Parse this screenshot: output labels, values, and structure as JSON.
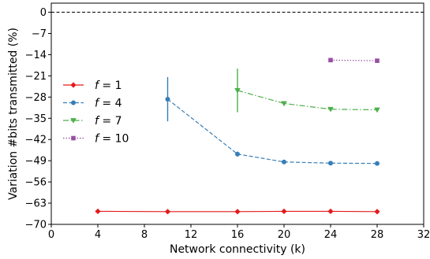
{
  "chart_data": {
    "type": "line",
    "title": "",
    "xlabel": "Network connectivity (k)",
    "ylabel": "Variation #bits transmitted (%)",
    "xlim": [
      0,
      32
    ],
    "ylim": [
      -70,
      3
    ],
    "xticks": [
      0,
      4,
      8,
      12,
      16,
      20,
      24,
      28,
      32
    ],
    "yticks": [
      0,
      -7,
      -14,
      -21,
      -28,
      -35,
      -42,
      -49,
      -56,
      -63,
      -70
    ],
    "grid": false,
    "legend_position": "center-left",
    "reference_line": {
      "y": 0,
      "style": "dashed",
      "color": "#000000"
    },
    "series": [
      {
        "name_symbol": "f",
        "name_value": "1",
        "color": "#e41a1c",
        "marker": "diamond",
        "linestyle": "solid",
        "x": [
          4,
          10,
          16,
          20,
          24,
          28
        ],
        "y": [
          -65.7,
          -65.8,
          -65.8,
          -65.7,
          -65.7,
          -65.8
        ],
        "err": [
          0,
          0,
          0,
          0,
          0,
          0
        ]
      },
      {
        "name_symbol": "f",
        "name_value": "4",
        "color": "#377eb8",
        "marker": "circle",
        "linestyle": "dashed",
        "x": [
          10,
          16,
          20,
          24,
          28
        ],
        "y": [
          -28.7,
          -46.8,
          -49.4,
          -49.8,
          -49.9
        ],
        "err": [
          7.3,
          0.8,
          0,
          0,
          0
        ]
      },
      {
        "name_symbol": "f",
        "name_value": "7",
        "color": "#4daf4a",
        "marker": "triangle-down",
        "linestyle": "dashdot",
        "x": [
          16,
          20,
          24,
          28
        ],
        "y": [
          -25.8,
          -30.1,
          -32.0,
          -32.2
        ],
        "err": [
          7.2,
          0,
          0,
          0
        ]
      },
      {
        "name_symbol": "f",
        "name_value": "10",
        "color": "#984ea3",
        "marker": "square",
        "linestyle": "dotted",
        "x": [
          24,
          28
        ],
        "y": [
          -15.8,
          -16.0
        ],
        "err": [
          0,
          0
        ]
      }
    ]
  }
}
